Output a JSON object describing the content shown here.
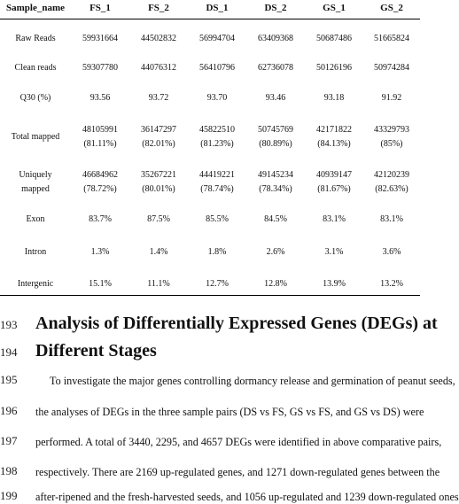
{
  "table": {
    "columns": [
      "Sample_name",
      "FS_1",
      "FS_2",
      "DS_1",
      "DS_2",
      "GS_1",
      "GS_2"
    ],
    "rows": [
      {
        "label": "Raw Reads",
        "label2": "",
        "values": [
          "59931664",
          "44502832",
          "56994704",
          "63409368",
          "50687486",
          "51665824"
        ],
        "sub": []
      },
      {
        "label": "Clean reads",
        "label2": "",
        "values": [
          "59307780",
          "44076312",
          "56410796",
          "62736078",
          "50126196",
          "50974284"
        ],
        "sub": []
      },
      {
        "label": "Q30 (%)",
        "label2": "",
        "values": [
          "93.56",
          "93.72",
          "93.70",
          "93.46",
          "93.18",
          "91.92"
        ],
        "sub": []
      },
      {
        "label": "Total mapped",
        "label2": "",
        "values": [
          "48105991",
          "36147297",
          "45822510",
          "50745769",
          "42171822",
          "43329793"
        ],
        "sub": [
          "(81.11%)",
          "(82.01%)",
          "(81.23%)",
          "(80.89%)",
          "(84.13%)",
          "(85%)"
        ]
      },
      {
        "label": "Uniquely",
        "label2": "mapped",
        "values": [
          "46684962",
          "35267221",
          "44419221",
          "49145234",
          "40939147",
          "42120239"
        ],
        "sub": [
          "(78.72%)",
          "(80.01%)",
          "(78.74%)",
          "(78.34%)",
          "(81.67%)",
          "(82.63%)"
        ]
      },
      {
        "label": "Exon",
        "label2": "",
        "values": [
          "83.7%",
          "87.5%",
          "85.5%",
          "84.5%",
          "83.1%",
          "83.1%"
        ],
        "sub": []
      },
      {
        "label": "Intron",
        "label2": "",
        "values": [
          "1.3%",
          "1.4%",
          "1.8%",
          "2.6%",
          "3.1%",
          "3.6%"
        ],
        "sub": []
      },
      {
        "label": "Intergenic",
        "label2": "",
        "values": [
          "15.1%",
          "11.1%",
          "12.7%",
          "12.8%",
          "13.9%",
          "13.2%"
        ],
        "sub": []
      }
    ]
  },
  "heading": {
    "line1_no": "193",
    "line1": "Analysis of Differentially Expressed Genes (DEGs) at",
    "line2_no": "194",
    "line2": "Different Stages"
  },
  "paragraph": [
    {
      "no": "195",
      "text": "To investigate the major genes controlling dormancy release and germination of peanut seeds,"
    },
    {
      "no": "196",
      "text": "the analyses of DEGs in the three sample pairs (DS vs FS, GS vs FS, and GS vs DS) were"
    },
    {
      "no": "197",
      "text": "performed. A total of 3440, 2295, and 4657 DEGs were identified in above comparative pairs,"
    },
    {
      "no": "198",
      "text": "respectively. There are 2169 up-regulated genes, and 1271 down-regulated genes between the"
    },
    {
      "no": "199",
      "text": "after-ripened and the fresh-harvested seeds, and 1056 up-regulated and 1239 down-regulated ones"
    }
  ]
}
